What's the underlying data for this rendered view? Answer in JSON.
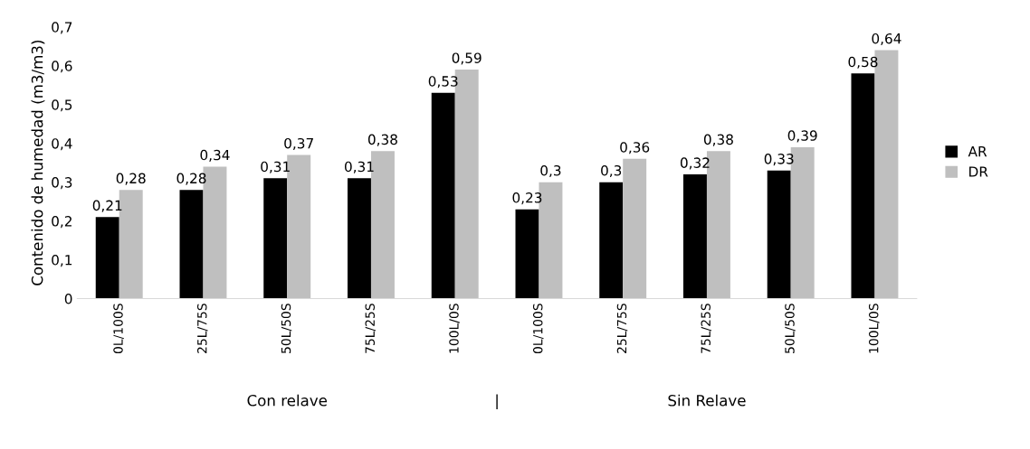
{
  "chart_data": {
    "type": "bar",
    "ylabel": "Contenido de humedad (m3/m3)",
    "categories": [
      "0L/100S",
      "25L/75S",
      "50L/50S",
      "75L/25S",
      "100L/0S",
      "0L/100S",
      "25L/75S",
      "75L/25S",
      "50L/50S",
      "100L/0S"
    ],
    "series": [
      {
        "name": "AR",
        "color": "#000000",
        "values": [
          0.21,
          0.28,
          0.31,
          0.31,
          0.53,
          0.23,
          0.3,
          0.32,
          0.33,
          0.58
        ],
        "value_labels": [
          "0,21",
          "0,28",
          "0,31",
          "0,31",
          "0,53",
          "0,23",
          "0,3",
          "0,32",
          "0,33",
          "0,58"
        ]
      },
      {
        "name": "DR",
        "color": "#bfbfbf",
        "values": [
          0.28,
          0.34,
          0.37,
          0.38,
          0.59,
          0.3,
          0.36,
          0.38,
          0.39,
          0.64
        ],
        "value_labels": [
          "0,28",
          "0,34",
          "0,37",
          "0,38",
          "0,59",
          "0,3",
          "0,36",
          "0,38",
          "0,39",
          "0,64"
        ]
      }
    ],
    "ylim": [
      0,
      0.7
    ],
    "yticks": [
      0,
      {
        "value": 0.1,
        "label": "0,1"
      },
      {
        "value": 0.2,
        "label": "0,2"
      },
      {
        "value": 0.3,
        "label": "0,3"
      },
      {
        "value": 0.4,
        "label": "0,4"
      },
      {
        "value": 0.5,
        "label": "0,5"
      },
      {
        "value": 0.6,
        "label": "0,6"
      },
      {
        "value": 0.7,
        "label": "0,7"
      }
    ],
    "annotations": [
      "Con relave",
      "|",
      "Sin Relave"
    ],
    "legend": "right",
    "grid": false
  }
}
